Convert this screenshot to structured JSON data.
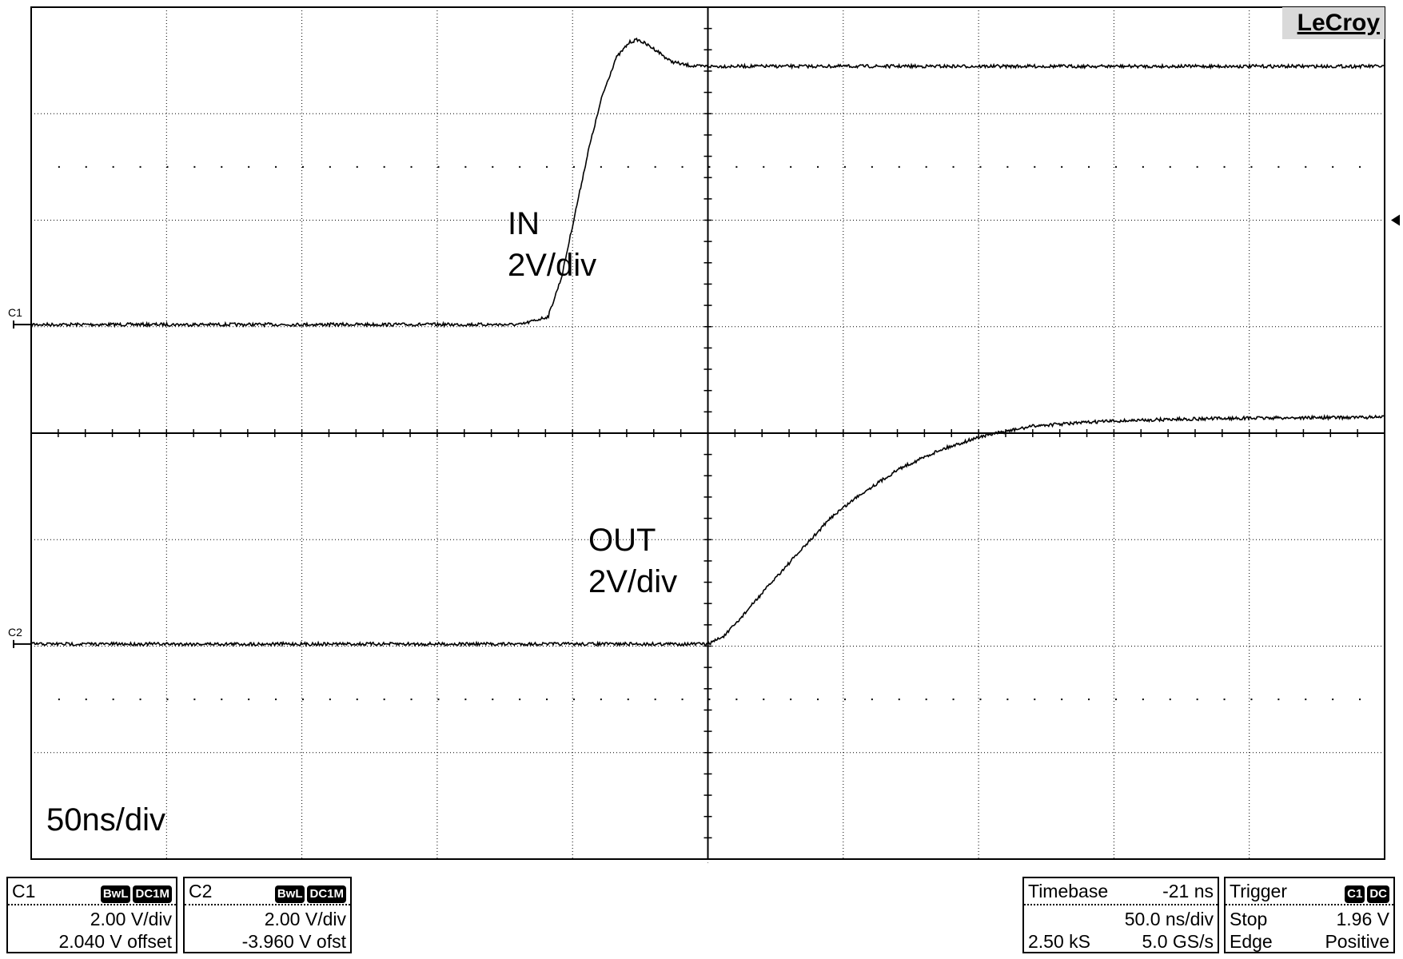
{
  "brand": "LeCroy",
  "annotations": {
    "in_name": "IN",
    "in_scale": "2V/div",
    "out_name": "OUT",
    "out_scale": "2V/div",
    "timebase_label": "50ns/div"
  },
  "channel_markers": {
    "c1": "C1",
    "c2": "C2"
  },
  "panels": {
    "c1": {
      "name": "C1",
      "badges": [
        "BwL",
        "DC1M"
      ],
      "vdiv": "2.00 V/div",
      "offset": "2.040 V offset"
    },
    "c2": {
      "name": "C2",
      "badges": [
        "BwL",
        "DC1M"
      ],
      "vdiv": "2.00 V/div",
      "offset": "-3.960 V ofst"
    },
    "timebase": {
      "label": "Timebase",
      "delay": "-21 ns",
      "tdiv": "50.0 ns/div",
      "samples": "2.50 kS",
      "rate": "5.0 GS/s"
    },
    "trigger": {
      "label": "Trigger",
      "badges": [
        "C1",
        "DC"
      ],
      "mode": "Stop",
      "level": "1.96 V",
      "type": "Edge",
      "slope": "Positive"
    }
  },
  "colors": {
    "trace": "#000000",
    "grid": "#000000",
    "background": "#ffffff",
    "brand_bg": "#d9d9d9"
  },
  "chart_data": {
    "type": "line",
    "title": "",
    "xlabel": "",
    "ylabel": "",
    "x_unit": "ns",
    "y_unit": "V",
    "xlim": [
      -271,
      229
    ],
    "ylim_div": [
      -4,
      4
    ],
    "grid": true,
    "divisions": {
      "x": 10,
      "y": 8
    },
    "series": [
      {
        "name": "IN",
        "channel": "C1",
        "x": [
          -271,
          -90,
          -80,
          -75,
          -70,
          -65,
          -60,
          -55,
          -50,
          -47,
          -45,
          -40,
          -35,
          -30,
          -25,
          -20,
          -15,
          -10,
          0,
          20,
          50,
          100,
          150,
          229
        ],
        "y": [
          0.0,
          0.0,
          0.15,
          0.9,
          2.1,
          3.3,
          4.3,
          5.0,
          5.3,
          5.35,
          5.3,
          5.15,
          4.95,
          4.88,
          4.85,
          4.85,
          4.85,
          4.85,
          4.85,
          4.85,
          4.85,
          4.85,
          4.85,
          4.85
        ]
      },
      {
        "name": "OUT",
        "channel": "C2",
        "x": [
          -271,
          -21,
          -15,
          -10,
          -5,
          5,
          15,
          25,
          35,
          50,
          65,
          80,
          100,
          125,
          150,
          175,
          200,
          229
        ],
        "y": [
          0.0,
          0.0,
          0.15,
          0.42,
          0.72,
          1.3,
          1.85,
          2.4,
          2.8,
          3.3,
          3.65,
          3.9,
          4.1,
          4.18,
          4.22,
          4.24,
          4.25,
          4.26
        ]
      }
    ],
    "channel_offset_div": {
      "C1": 1.02,
      "C2": -1.98
    },
    "trigger_time": -21,
    "trigger_level": 1.96
  }
}
